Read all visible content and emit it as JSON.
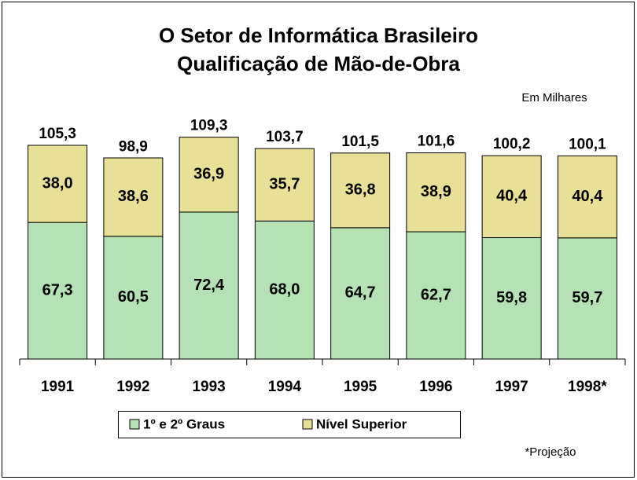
{
  "chart_data": {
    "type": "stacked_bar",
    "title": [
      "O Setor de Informática Brasileiro",
      "Qualificação de Mão-de-Obra"
    ],
    "subtitle": "Em Milhares",
    "note": "*Projeção",
    "categories": [
      "1991",
      "1992",
      "1993",
      "1994",
      "1995",
      "1996",
      "1997",
      "1998*"
    ],
    "series": [
      {
        "name": "1º e 2º Graus",
        "color": "#b4e2b4",
        "values": [
          67.3,
          60.5,
          72.4,
          68.0,
          64.7,
          62.7,
          59.8,
          59.7
        ],
        "value_labels": [
          "67,3",
          "60,5",
          "72,4",
          "68,0",
          "64,7",
          "62,7",
          "59,8",
          "59,7"
        ]
      },
      {
        "name": "Nível Superior",
        "color": "#e8e096",
        "values": [
          38.0,
          38.6,
          36.9,
          35.7,
          36.8,
          38.9,
          40.4,
          40.4
        ],
        "value_labels": [
          "38,0",
          "38,6",
          "36,9",
          "35,7",
          "36,8",
          "38,9",
          "40,4",
          "40,4"
        ]
      }
    ],
    "totals": [
      105.3,
      98.9,
      109.3,
      103.7,
      101.5,
      101.6,
      100.2,
      100.1
    ],
    "total_labels": [
      "105,3",
      "98,9",
      "109,3",
      "103,7",
      "101,5",
      "101,6",
      "100,2",
      "100,1"
    ],
    "ylim": [
      0,
      120
    ],
    "legend": "bottom"
  }
}
